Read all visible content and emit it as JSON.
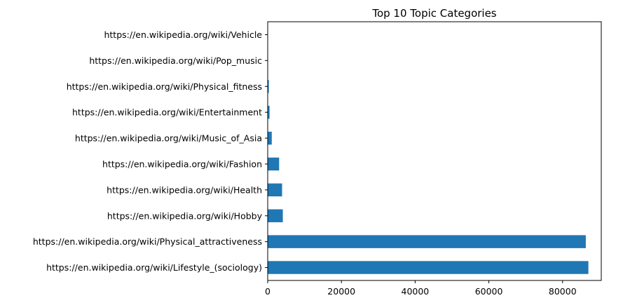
{
  "chart_data": {
    "type": "bar",
    "orientation": "horizontal",
    "title": "Top 10 Topic Categories",
    "xlabel": "",
    "ylabel": "",
    "categories": [
      "https://en.wikipedia.org/wiki/Lifestyle_(sociology)",
      "https://en.wikipedia.org/wiki/Physical_attractiveness",
      "https://en.wikipedia.org/wiki/Hobby",
      "https://en.wikipedia.org/wiki/Health",
      "https://en.wikipedia.org/wiki/Fashion",
      "https://en.wikipedia.org/wiki/Music_of_Asia",
      "https://en.wikipedia.org/wiki/Entertainment",
      "https://en.wikipedia.org/wiki/Physical_fitness",
      "https://en.wikipedia.org/wiki/Pop_music",
      "https://en.wikipedia.org/wiki/Vehicle"
    ],
    "values": [
      87000,
      86300,
      4100,
      3900,
      3100,
      1100,
      500,
      300,
      100,
      50
    ],
    "xlim": [
      0,
      90500
    ],
    "xticks": [
      0,
      20000,
      40000,
      60000,
      80000
    ],
    "grid": false,
    "legend": "none",
    "colors": {
      "bar": "#1f77b4",
      "axis": "#000000",
      "background": "#ffffff"
    }
  }
}
